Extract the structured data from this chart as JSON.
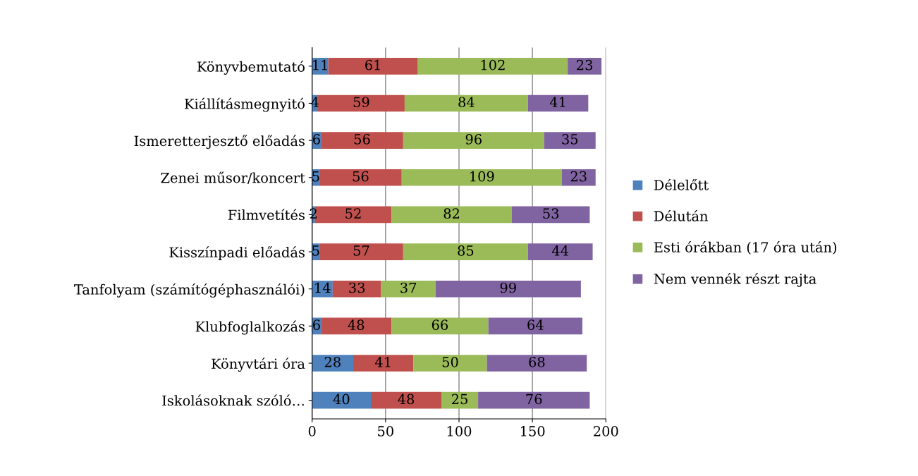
{
  "chart_data": {
    "type": "bar",
    "orientation": "horizontal",
    "stacked": true,
    "categories": [
      "Könyvbemutató",
      "Kiállításmegnyitó",
      "Ismeretterjesztő előadás",
      "Zenei műsor/koncert",
      "Filmvetítés",
      "Kisszínpadi előadás",
      "Tanfolyam (számítógéphasználói)",
      "Klubfoglalkozás",
      "Könyvtári óra",
      "Iskolásoknak szóló…"
    ],
    "series": [
      {
        "name": "Délelőtt",
        "color": "#4f81bd",
        "values": [
          11,
          4,
          6,
          5,
          2,
          5,
          14,
          6,
          28,
          40
        ]
      },
      {
        "name": "Délután",
        "color": "#c0504d",
        "values": [
          61,
          59,
          56,
          56,
          52,
          57,
          33,
          48,
          41,
          48
        ]
      },
      {
        "name": "Esti órákban (17 óra után)",
        "color": "#9bbb59",
        "values": [
          102,
          84,
          96,
          109,
          82,
          85,
          37,
          66,
          50,
          25
        ]
      },
      {
        "name": "Nem vennék részt rajta",
        "color": "#8064a2",
        "values": [
          23,
          41,
          35,
          23,
          53,
          44,
          99,
          64,
          68,
          76
        ]
      }
    ],
    "xlim": [
      0,
      200
    ],
    "xticks": [
      0,
      50,
      100,
      150,
      200
    ],
    "grid": "x",
    "legend": "right",
    "data_labels": true
  }
}
